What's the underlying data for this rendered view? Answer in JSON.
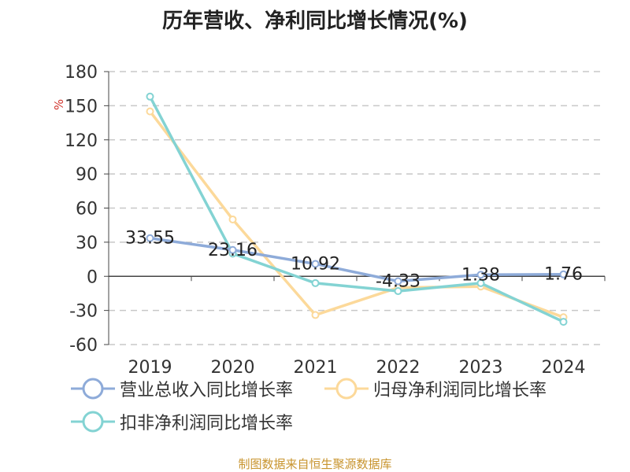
{
  "title": "历年营收、净利同比增长情况(%)",
  "source": "制图数据来自恒生聚源数据库",
  "colors": {
    "revenue": "#8eabd9",
    "net_profit": "#fcd99a",
    "deducted_profit": "#83d3d3",
    "unit": "#d0342c",
    "grid": "#c8c8c8",
    "axis": "#444444",
    "source": "#c8942e"
  },
  "chart_data": {
    "type": "line",
    "title": "历年营收、净利同比增长情况(%)",
    "ylabel": "%",
    "xlabel": "",
    "categories": [
      "2019",
      "2020",
      "2021",
      "2022",
      "2023",
      "2024"
    ],
    "ylim": [
      -60,
      180
    ],
    "yticks": [
      180,
      150,
      120,
      90,
      60,
      30,
      0,
      -30,
      -60
    ],
    "grid": true,
    "legend_position": "bottom",
    "series": [
      {
        "key": "revenue",
        "name": "营业总收入同比增长率",
        "values": [
          33.55,
          23.16,
          10.92,
          -4.33,
          1.38,
          1.76
        ],
        "labels": [
          "33.55",
          "23.16",
          "10.92",
          "-4.33",
          "1.38",
          "1.76"
        ],
        "show_labels": true
      },
      {
        "key": "net_profit",
        "name": "归母净利润同比增长率",
        "values": [
          145,
          50,
          -34,
          -10,
          -9,
          -36
        ],
        "show_labels": false
      },
      {
        "key": "deducted_profit",
        "name": "扣非净利润同比增长率",
        "values": [
          158,
          20,
          -6,
          -13,
          -6,
          -40
        ],
        "show_labels": false
      }
    ]
  }
}
